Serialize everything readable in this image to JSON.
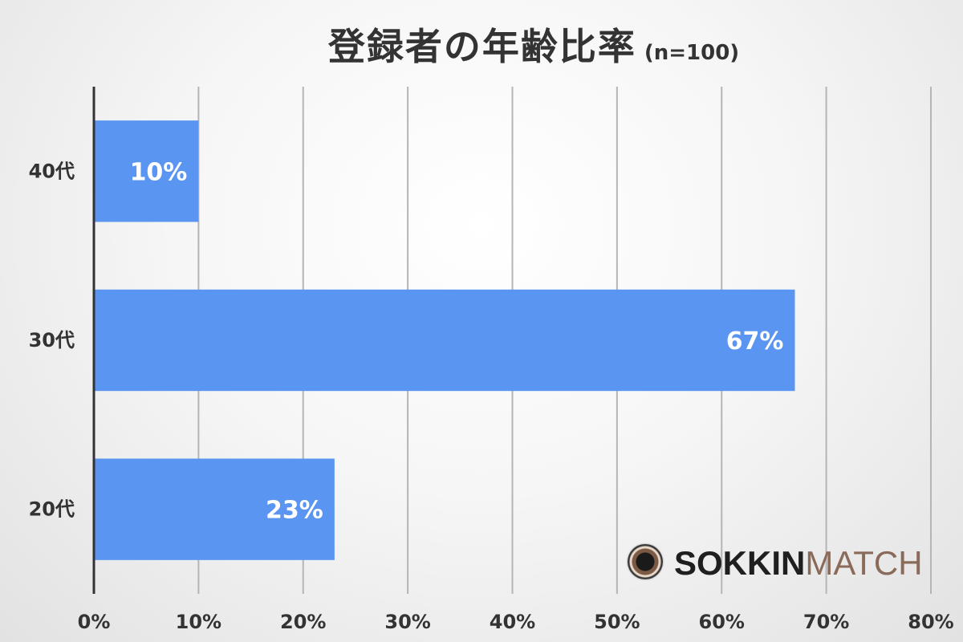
{
  "title": "登録者の年齢比率",
  "subtitle": "(n=100)",
  "logo": {
    "part1": "SOKKIN",
    "part2": "MATCH",
    "ring_color": "#7a5a45"
  },
  "colors": {
    "bar": "#5b95f2",
    "grid": "#b5b5b5",
    "axis": "#333333"
  },
  "chart_data": {
    "type": "bar",
    "orientation": "horizontal",
    "categories": [
      "40代",
      "30代",
      "20代"
    ],
    "values": [
      10,
      67,
      23
    ],
    "data_labels": [
      "10%",
      "67%",
      "23%"
    ],
    "xlim": [
      0,
      80
    ],
    "xticks": [
      0,
      10,
      20,
      30,
      40,
      50,
      60,
      70,
      80
    ],
    "xtick_labels": [
      "0%",
      "10%",
      "20%",
      "30%",
      "40%",
      "50%",
      "60%",
      "70%",
      "80%"
    ],
    "grid": true,
    "legend": "none"
  }
}
